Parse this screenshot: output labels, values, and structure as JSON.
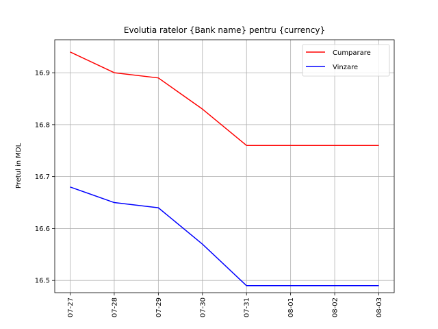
{
  "chart_data": {
    "type": "line",
    "title": "Evolutia ratelor {Bank name} pentru {currency}",
    "xlabel": "",
    "ylabel": "Pretul in MDL",
    "categories": [
      "07-27",
      "07-28",
      "07-29",
      "07-30",
      "07-31",
      "08-01",
      "08-02",
      "08-03"
    ],
    "series": [
      {
        "name": "Cumparare",
        "color": "#ff0000",
        "values": [
          16.94,
          16.9,
          16.89,
          16.83,
          16.76,
          16.76,
          16.76,
          16.76
        ]
      },
      {
        "name": "Vinzare",
        "color": "#0000ff",
        "values": [
          16.68,
          16.65,
          16.64,
          16.57,
          16.49,
          16.49,
          16.49,
          16.49
        ]
      }
    ],
    "ylim": [
      16.4765,
      16.9635
    ],
    "yticks": [
      16.5,
      16.6,
      16.7,
      16.8,
      16.9
    ],
    "ytick_labels": [
      "16.5",
      "16.6",
      "16.7",
      "16.8",
      "16.9"
    ],
    "grid": true,
    "legend_position": "top-right",
    "xtick_rotation": 90
  }
}
